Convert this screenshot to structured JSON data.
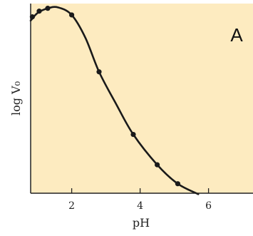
{
  "chart_data": {
    "type": "line",
    "panel_label": "A",
    "xlabel": "pH",
    "ylabel": "log V₀",
    "xlim": [
      0.8,
      7.3
    ],
    "ylim": [
      0,
      1.0
    ],
    "x_ticks": [
      2,
      4,
      6
    ],
    "x_tick_labels": [
      "2",
      "4",
      "6"
    ],
    "y_ticks_labeled": false,
    "grid": false,
    "colors": {
      "background": "#fdebc0",
      "curve": "#1a1a1a",
      "axis": "#222222"
    },
    "series": [
      {
        "points": [
          {
            "x": 0.85,
            "y": 0.93
          },
          {
            "x": 1.05,
            "y": 0.96
          },
          {
            "x": 1.3,
            "y": 0.975
          },
          {
            "x": 2.0,
            "y": 0.94
          },
          {
            "x": 2.8,
            "y": 0.64
          },
          {
            "x": 3.8,
            "y": 0.31
          },
          {
            "x": 4.5,
            "y": 0.15
          },
          {
            "x": 5.1,
            "y": 0.05
          }
        ],
        "curve": [
          {
            "x": 0.8,
            "y": 0.91
          },
          {
            "x": 1.0,
            "y": 0.95
          },
          {
            "x": 1.3,
            "y": 0.975
          },
          {
            "x": 1.6,
            "y": 0.98
          },
          {
            "x": 2.0,
            "y": 0.94
          },
          {
            "x": 2.4,
            "y": 0.82
          },
          {
            "x": 2.8,
            "y": 0.64
          },
          {
            "x": 3.3,
            "y": 0.47
          },
          {
            "x": 3.8,
            "y": 0.31
          },
          {
            "x": 4.5,
            "y": 0.15
          },
          {
            "x": 5.1,
            "y": 0.05
          },
          {
            "x": 5.7,
            "y": -0.005
          }
        ]
      }
    ]
  }
}
